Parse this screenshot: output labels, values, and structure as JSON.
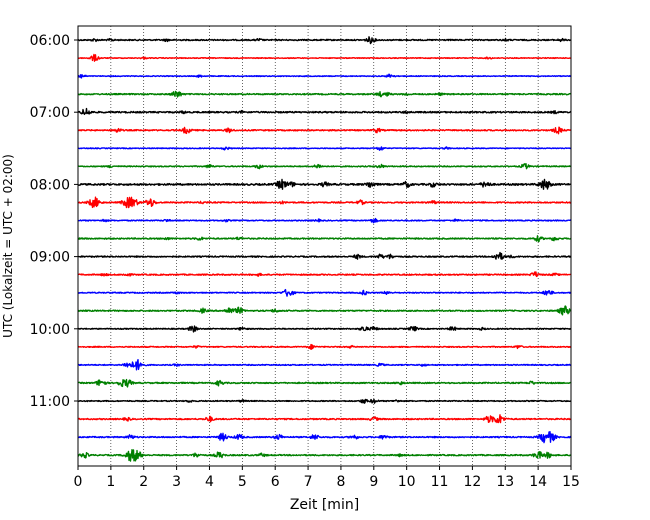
{
  "chart_data": {
    "type": "line",
    "title": "",
    "xlabel": "Zeit  [min]",
    "ylabel": "UTC (Lokalzeit = UTC + 02:00)",
    "xlim": [
      0,
      15
    ],
    "x_ticks": [
      "0",
      "1",
      "2",
      "3",
      "4",
      "5",
      "6",
      "7",
      "8",
      "9",
      "10",
      "11",
      "12",
      "13",
      "14",
      "15"
    ],
    "y_ticks": [
      "06:00",
      "07:00",
      "08:00",
      "09:00",
      "10:00",
      "11:00"
    ],
    "grid": "vertical dotted at each minute",
    "trace_interval_minutes": 15,
    "start_time": "06:00",
    "colors": {
      "black": "#000000",
      "red": "#ff0000",
      "blue": "#0000ff",
      "green": "#008000"
    },
    "series": [
      {
        "time": "06:00",
        "color": "black",
        "base": 0.6,
        "events": [
          [
            0.5,
            1.2
          ],
          [
            1.0,
            1.0
          ],
          [
            2.7,
            1.0
          ],
          [
            5.5,
            1.1
          ],
          [
            8.9,
            3.0
          ],
          [
            13.0,
            1.0
          ],
          [
            14.7,
            1.2
          ]
        ]
      },
      {
        "time": "06:15",
        "color": "red",
        "base": 0.4,
        "events": [
          [
            0.5,
            3.2
          ],
          [
            2.0,
            0.8
          ],
          [
            12.5,
            1.0
          ]
        ]
      },
      {
        "time": "06:30",
        "color": "blue",
        "base": 0.4,
        "events": [
          [
            0.1,
            2.0
          ],
          [
            3.7,
            1.0
          ],
          [
            9.5,
            2.0
          ]
        ]
      },
      {
        "time": "06:45",
        "color": "green",
        "base": 0.6,
        "events": [
          [
            3.0,
            3.5
          ],
          [
            9.2,
            2.0
          ],
          [
            9.4,
            1.5
          ],
          [
            10.0,
            1.0
          ],
          [
            11.0,
            1.0
          ]
        ]
      },
      {
        "time": "07:00",
        "color": "black",
        "base": 0.7,
        "events": [
          [
            0.25,
            3.5
          ],
          [
            3.2,
            1.0
          ],
          [
            5.0,
            1.0
          ],
          [
            10.0,
            1.0
          ],
          [
            14.5,
            1.0
          ]
        ]
      },
      {
        "time": "07:15",
        "color": "red",
        "base": 0.6,
        "events": [
          [
            1.2,
            2.0
          ],
          [
            3.3,
            3.0
          ],
          [
            4.6,
            2.0
          ],
          [
            9.1,
            2.0
          ],
          [
            14.6,
            3.0
          ]
        ]
      },
      {
        "time": "07:30",
        "color": "blue",
        "base": 0.4,
        "events": [
          [
            4.5,
            1.5
          ],
          [
            9.2,
            2.0
          ],
          [
            11.2,
            1.0
          ]
        ]
      },
      {
        "time": "07:45",
        "color": "green",
        "base": 0.5,
        "events": [
          [
            1.0,
            1.0
          ],
          [
            4.0,
            1.5
          ],
          [
            5.5,
            2.0
          ],
          [
            7.3,
            2.0
          ],
          [
            9.2,
            1.8
          ],
          [
            13.6,
            2.5
          ]
        ]
      },
      {
        "time": "08:00",
        "color": "black",
        "base": 0.8,
        "events": [
          [
            6.2,
            4.5
          ],
          [
            6.5,
            2.0
          ],
          [
            7.5,
            2.0
          ],
          [
            8.9,
            3.0
          ],
          [
            10.0,
            2.5
          ],
          [
            10.8,
            2.0
          ],
          [
            12.4,
            3.0
          ],
          [
            14.2,
            5.0
          ]
        ]
      },
      {
        "time": "08:15",
        "color": "red",
        "base": 0.6,
        "events": [
          [
            0.5,
            5.0
          ],
          [
            1.5,
            4.5
          ],
          [
            1.7,
            3.5
          ],
          [
            2.2,
            4.0
          ],
          [
            3.8,
            1.0
          ],
          [
            6.2,
            1.0
          ],
          [
            8.6,
            2.0
          ],
          [
            10.8,
            1.5
          ]
        ]
      },
      {
        "time": "08:30",
        "color": "blue",
        "base": 0.5,
        "events": [
          [
            0.8,
            1.0
          ],
          [
            2.7,
            1.0
          ],
          [
            4.5,
            1.0
          ],
          [
            7.3,
            1.0
          ],
          [
            9.0,
            2.0
          ],
          [
            11.5,
            1.0
          ]
        ]
      },
      {
        "time": "08:45",
        "color": "green",
        "base": 0.6,
        "events": [
          [
            2.7,
            1.0
          ],
          [
            3.7,
            1.5
          ],
          [
            4.9,
            1.2
          ],
          [
            14.0,
            2.5
          ],
          [
            14.5,
            2.0
          ]
        ]
      },
      {
        "time": "09:00",
        "color": "black",
        "base": 0.6,
        "events": [
          [
            8.5,
            2.0
          ],
          [
            9.2,
            2.0
          ],
          [
            9.5,
            2.0
          ],
          [
            12.8,
            4.0
          ],
          [
            13.2,
            1.0
          ]
        ]
      },
      {
        "time": "09:15",
        "color": "red",
        "base": 0.6,
        "events": [
          [
            0.8,
            1.0
          ],
          [
            1.5,
            1.5
          ],
          [
            5.5,
            1.0
          ],
          [
            13.9,
            2.5
          ],
          [
            14.5,
            1.0
          ]
        ]
      },
      {
        "time": "09:30",
        "color": "blue",
        "base": 0.5,
        "events": [
          [
            3.0,
            1.0
          ],
          [
            6.4,
            4.0
          ],
          [
            8.7,
            2.0
          ],
          [
            9.4,
            1.5
          ],
          [
            14.3,
            3.0
          ]
        ]
      },
      {
        "time": "09:45",
        "color": "green",
        "base": 0.6,
        "events": [
          [
            3.8,
            2.0
          ],
          [
            4.6,
            3.0
          ],
          [
            4.9,
            3.0
          ],
          [
            6.0,
            1.5
          ],
          [
            14.8,
            4.5
          ]
        ]
      },
      {
        "time": "10:00",
        "color": "black",
        "base": 0.5,
        "events": [
          [
            3.5,
            3.0
          ],
          [
            5.0,
            1.5
          ],
          [
            8.7,
            2.5
          ],
          [
            9.0,
            2.0
          ],
          [
            10.2,
            2.5
          ],
          [
            11.4,
            2.0
          ],
          [
            12.3,
            1.0
          ]
        ]
      },
      {
        "time": "10:15",
        "color": "red",
        "base": 0.5,
        "events": [
          [
            3.6,
            1.0
          ],
          [
            7.1,
            2.0
          ],
          [
            8.3,
            1.0
          ],
          [
            13.4,
            1.5
          ]
        ]
      },
      {
        "time": "10:30",
        "color": "blue",
        "base": 0.5,
        "events": [
          [
            1.5,
            2.5
          ],
          [
            1.8,
            5.0
          ],
          [
            3.0,
            1.0
          ],
          [
            9.2,
            1.5
          ],
          [
            10.5,
            1.0
          ]
        ]
      },
      {
        "time": "10:45",
        "color": "green",
        "base": 0.6,
        "events": [
          [
            0.7,
            3.5
          ],
          [
            1.3,
            2.5
          ],
          [
            1.5,
            3.5
          ],
          [
            4.3,
            2.5
          ],
          [
            9.8,
            1.5
          ],
          [
            13.8,
            1.5
          ]
        ]
      },
      {
        "time": "11:00",
        "color": "black",
        "base": 0.5,
        "events": [
          [
            3.4,
            1.0
          ],
          [
            5.0,
            1.0
          ],
          [
            8.7,
            2.0
          ],
          [
            9.0,
            2.0
          ],
          [
            9.7,
            1.0
          ]
        ]
      },
      {
        "time": "11:15",
        "color": "red",
        "base": 0.6,
        "events": [
          [
            1.5,
            1.5
          ],
          [
            4.0,
            2.5
          ],
          [
            9.0,
            2.0
          ],
          [
            12.5,
            3.0
          ],
          [
            12.8,
            4.5
          ]
        ]
      },
      {
        "time": "11:30",
        "color": "blue",
        "base": 0.6,
        "events": [
          [
            1.6,
            2.0
          ],
          [
            4.4,
            3.5
          ],
          [
            4.9,
            2.5
          ],
          [
            6.1,
            2.5
          ],
          [
            7.2,
            2.5
          ],
          [
            8.4,
            2.0
          ],
          [
            9.3,
            2.0
          ],
          [
            14.2,
            5.0
          ],
          [
            14.4,
            3.5
          ]
        ]
      },
      {
        "time": "11:45",
        "color": "green",
        "base": 0.6,
        "events": [
          [
            0.2,
            2.5
          ],
          [
            1.6,
            5.0
          ],
          [
            1.8,
            4.0
          ],
          [
            3.6,
            2.0
          ],
          [
            4.3,
            3.0
          ],
          [
            5.6,
            1.5
          ],
          [
            9.8,
            1.0
          ],
          [
            14.0,
            3.5
          ],
          [
            14.3,
            2.5
          ]
        ]
      }
    ]
  }
}
